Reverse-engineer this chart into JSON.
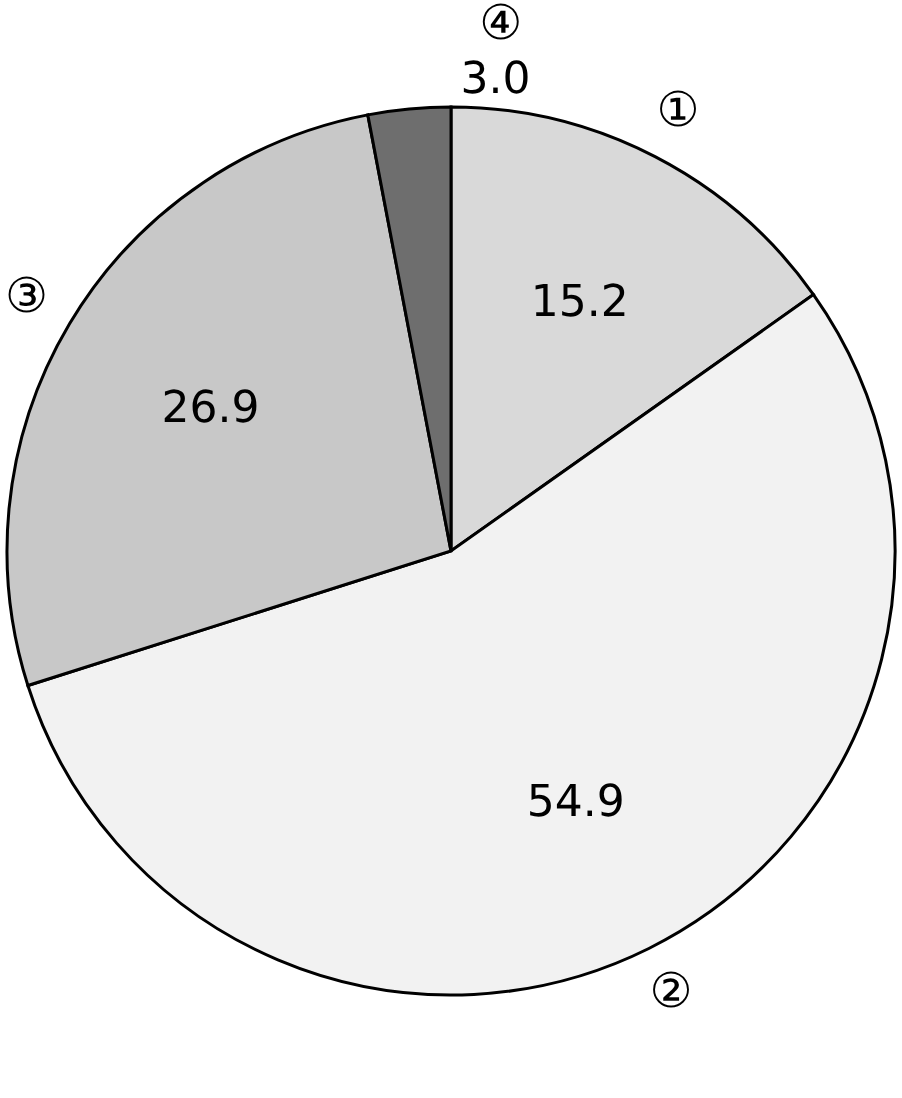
{
  "chart_data": {
    "type": "pie",
    "categories": [
      "①",
      "②",
      "③",
      "④"
    ],
    "values": [
      15.2,
      54.9,
      26.9,
      3.0
    ],
    "colors": [
      "#d9d9d9",
      "#f2f2f2",
      "#c8c8c8",
      "#6e6e6e"
    ],
    "value_labels": [
      "15.2",
      "54.9",
      "26.9",
      "3.0"
    ],
    "legend": false
  }
}
